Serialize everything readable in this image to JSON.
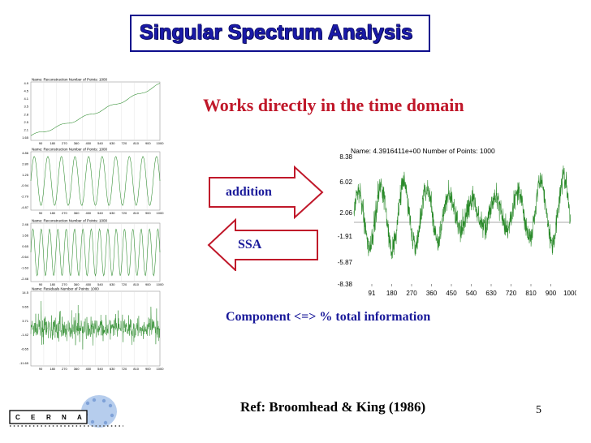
{
  "slide": {
    "title": "Singular Spectrum Analysis",
    "subtitle": "Works directly in the time domain",
    "component_text": "Component <=> % total information",
    "reference": "Ref: Broomhead & King (1986)",
    "page_number": "5",
    "arrow_right_label": "addition",
    "arrow_left_label": "SSA",
    "logo_letters": [
      "C",
      "E",
      "R",
      "N",
      "A"
    ]
  },
  "colors": {
    "title": "#1a1aa8",
    "subtitle": "#c0182a",
    "body_text": "#1a1a9a",
    "arrow_outline": "#c0182a",
    "series": "#2a8a2a"
  },
  "main_plot": {
    "header": "Name:  4.3916411e+00    Number of Points: 1000",
    "y_ticks": [
      "8.38",
      "6.02",
      "2.06",
      "-1.91",
      "-5.87",
      "-8.38"
    ],
    "x_ticks": [
      "91",
      "180",
      "270",
      "360",
      "450",
      "540",
      "630",
      "720",
      "810",
      "900",
      "1000"
    ]
  },
  "small_plots": [
    {
      "header": "Name: Reconstruction   Number of Points: 1000",
      "y_ticks": [
        "4.9",
        "4.5",
        "4.1",
        "3.5",
        "2.8",
        "2.5",
        "2.1",
        "1.65"
      ],
      "x_ticks": [
        "90",
        "180",
        "270",
        "360",
        "450",
        "540",
        "630",
        "720",
        "810",
        "900",
        "1000"
      ]
    },
    {
      "header": "Name: Reconstruction   Number of Points: 1000",
      "y_ticks": [
        "4.86",
        "2.80",
        "1.25",
        "-0.94",
        "-2.79",
        "-4.87"
      ],
      "x_ticks": [
        "90",
        "180",
        "270",
        "360",
        "450",
        "540",
        "630",
        "720",
        "810",
        "900",
        "1000"
      ]
    },
    {
      "header": "Name: Reconstruction   Number of Points: 1000",
      "y_ticks": [
        "2.46",
        "1.66",
        "0.65",
        "-0.64",
        "-1.63",
        "-2.46"
      ],
      "x_ticks": [
        "90",
        "180",
        "270",
        "360",
        "450",
        "540",
        "630",
        "720",
        "810",
        "900",
        "1000"
      ]
    },
    {
      "header": "Name: Residuals   Number of Points: 1000",
      "y_ticks": [
        "14.5",
        "9.65",
        "3.71",
        "-1.42",
        "-6.65",
        "-11.65"
      ],
      "x_ticks": [
        "90",
        "180",
        "270",
        "360",
        "450",
        "540",
        "630",
        "720",
        "810",
        "900",
        "1000"
      ]
    }
  ]
}
